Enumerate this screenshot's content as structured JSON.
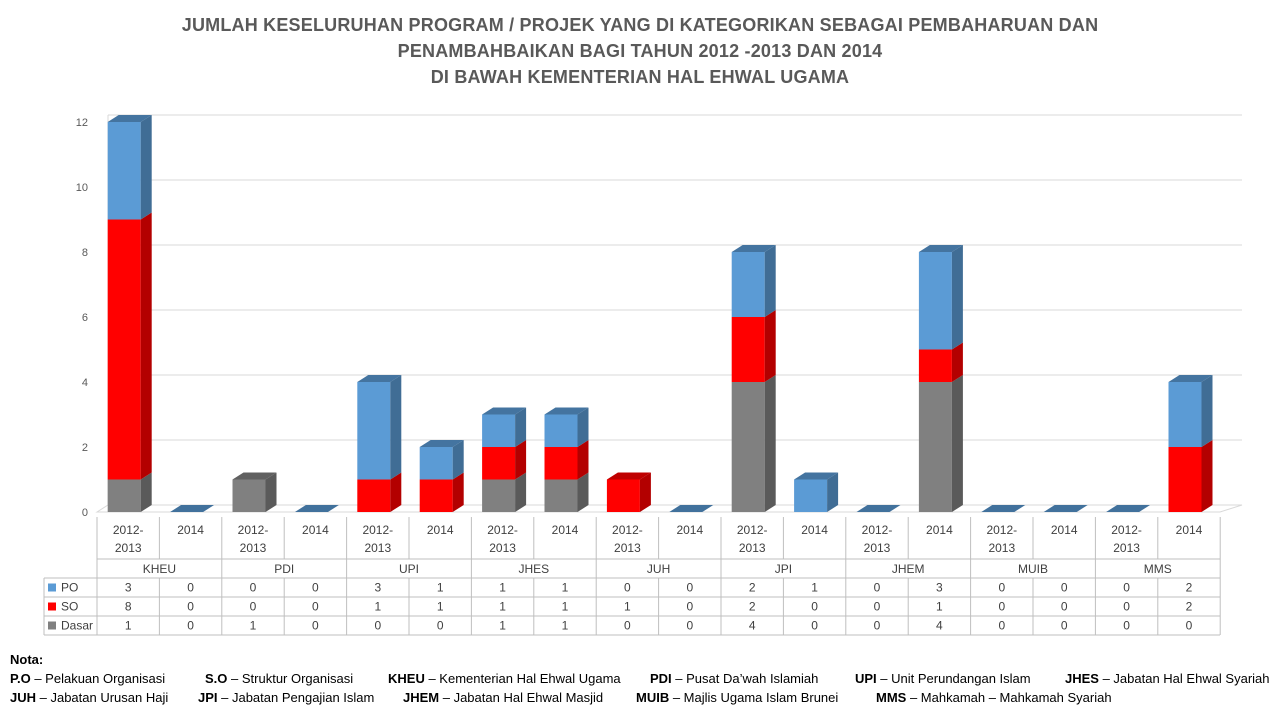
{
  "title": {
    "line1": "JUMLAH KESELURUHAN PROGRAM / PROJEK YANG DI KATEGORIKAN  SEBAGAI PEMBAHARUAN  DAN",
    "line2": "PENAMBAHBAIKAN BAGI TAHUN 2012 -2013 DAN 2014",
    "line3": "DI BAWAH KEMENTERIAN  HAL EHWAL UGAMA"
  },
  "chart_data": {
    "type": "bar",
    "stacked": true,
    "style": "3d",
    "groups": [
      "KHEU",
      "PDI",
      "UPI",
      "JHES",
      "JUH",
      "JPI",
      "JHEM",
      "MUIB",
      "MMS"
    ],
    "periods": [
      "2012-2013",
      "2014"
    ],
    "period_labels": [
      [
        "2012-",
        "2013"
      ],
      [
        "2014"
      ]
    ],
    "series": [
      {
        "name": "PO",
        "color": "#5b9bd5",
        "values": [
          3,
          0,
          0,
          0,
          3,
          1,
          1,
          1,
          0,
          0,
          2,
          1,
          0,
          3,
          0,
          0,
          0,
          2
        ]
      },
      {
        "name": "SO",
        "color": "#ff0000",
        "values": [
          8,
          0,
          0,
          0,
          1,
          1,
          1,
          1,
          1,
          0,
          2,
          0,
          0,
          1,
          0,
          0,
          0,
          2
        ]
      },
      {
        "name": "Dasar",
        "color": "#808080",
        "values": [
          1,
          0,
          1,
          0,
          0,
          0,
          1,
          1,
          0,
          0,
          4,
          0,
          0,
          4,
          0,
          0,
          0,
          0
        ]
      }
    ],
    "stack_order": [
      "Dasar",
      "SO",
      "PO"
    ],
    "y_ticks": [
      0,
      2,
      4,
      6,
      8,
      10,
      12
    ],
    "ylim": [
      0,
      12
    ],
    "grid": true,
    "legend": "data-table"
  },
  "notes": {
    "label": "Nota:",
    "row1": [
      {
        "abbr": "P.O",
        "desc": " – Pelakuan Organisasi"
      },
      {
        "abbr": "S.O",
        "desc": " – Struktur Organisasi"
      },
      {
        "abbr": "KHEU",
        "desc": " – Kementerian Hal Ehwal Ugama"
      },
      {
        "abbr": "PDI",
        "desc": " – Pusat Da’wah Islamiah"
      },
      {
        "abbr": "UPI",
        "desc": " – Unit Perundangan Islam"
      },
      {
        "abbr": "JHES",
        "desc": " – Jabatan Hal Ehwal Syariah"
      }
    ],
    "row2": [
      {
        "abbr": "JUH",
        "desc": " – Jabatan Urusan Haji"
      },
      {
        "abbr": "JPI",
        "desc": " – Jabatan Pengajian Islam"
      },
      {
        "abbr": "JHEM",
        "desc": " – Jabatan Hal Ehwal Masjid"
      },
      {
        "abbr": "MUIB",
        "desc": " – Majlis Ugama Islam Brunei"
      },
      {
        "abbr": "MMS",
        "desc": " – Mahkamah – Mahkamah Syariah"
      }
    ]
  }
}
